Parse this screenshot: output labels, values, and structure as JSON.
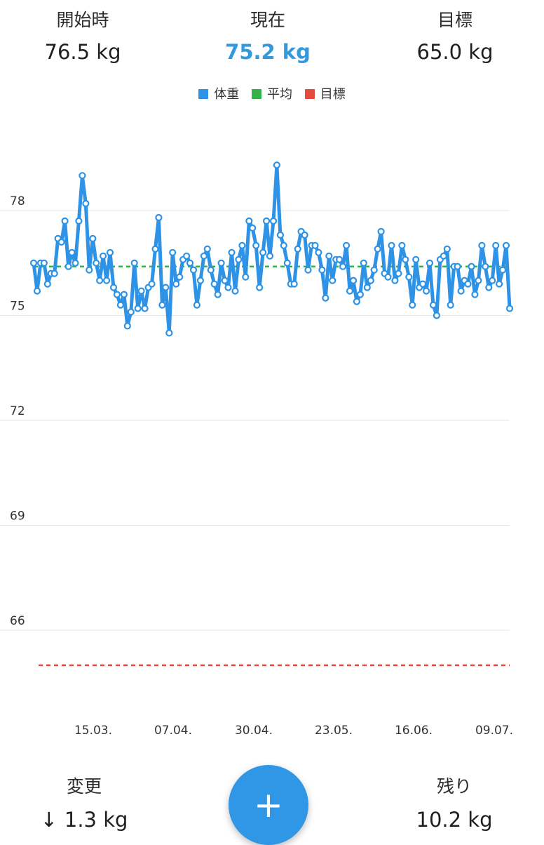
{
  "stats": {
    "start": {
      "label": "開始時",
      "value": "76.5 kg"
    },
    "current": {
      "label": "現在",
      "value": "75.2 kg"
    },
    "goal": {
      "label": "目標",
      "value": "65.0 kg"
    }
  },
  "legend": [
    {
      "label": "体重",
      "color": "#2e93e6"
    },
    {
      "label": "平均",
      "color": "#34b24a"
    },
    {
      "label": "目標",
      "color": "#e54b3c"
    }
  ],
  "bottom": {
    "change": {
      "label": "変更",
      "arrow": "↓",
      "value": "1.3 kg"
    },
    "remaining": {
      "label": "残り",
      "value": "10.2 kg"
    },
    "add_button": "+"
  },
  "chart_data": {
    "type": "line",
    "x_tick_labels": [
      "15.03.",
      "07.04.",
      "30.04.",
      "23.05.",
      "16.06.",
      "09.07."
    ],
    "y_tick_labels": [
      "78",
      "75",
      "72",
      "69",
      "66"
    ],
    "ylim": [
      64.0,
      80.5
    ],
    "grid": true,
    "legend_position": "top",
    "average": 76.4,
    "goal": 65.0,
    "series": [
      {
        "name": "体重",
        "color": "#2e93e6",
        "values": [
          76.5,
          75.7,
          76.5,
          76.5,
          75.9,
          76.2,
          76.2,
          77.2,
          77.1,
          77.7,
          76.4,
          76.8,
          76.5,
          77.7,
          79.0,
          78.2,
          76.3,
          77.2,
          76.5,
          76.0,
          76.7,
          76.0,
          76.8,
          75.8,
          75.6,
          75.3,
          75.6,
          74.7,
          75.1,
          76.5,
          75.2,
          75.7,
          75.2,
          75.8,
          75.9,
          76.9,
          77.8,
          75.3,
          75.8,
          74.5,
          76.8,
          75.9,
          76.1,
          76.6,
          76.7,
          76.5,
          76.3,
          75.3,
          76.0,
          76.7,
          76.9,
          76.3,
          75.9,
          75.6,
          76.5,
          76.0,
          75.8,
          76.8,
          75.7,
          76.6,
          77.0,
          76.1,
          77.7,
          77.5,
          77.0,
          75.8,
          76.8,
          77.7,
          76.7,
          77.7,
          79.3,
          77.3,
          77.0,
          76.5,
          75.9,
          75.9,
          76.9,
          77.4,
          77.3,
          76.3,
          77.0,
          77.0,
          76.8,
          76.3,
          75.5,
          76.7,
          76.0,
          76.6,
          76.6,
          76.4,
          77.0,
          75.7,
          76.0,
          75.4,
          75.6,
          76.5,
          75.8,
          76.0,
          76.3,
          76.9,
          77.4,
          76.2,
          76.1,
          77.0,
          76.0,
          76.2,
          77.0,
          76.6,
          76.1,
          75.3,
          76.6,
          75.8,
          75.9,
          75.7,
          76.5,
          75.3,
          75.0,
          76.6,
          76.7,
          76.9,
          75.3,
          76.4,
          76.4,
          75.7,
          76.0,
          75.9,
          76.4,
          75.6,
          76.0,
          77.0,
          76.4,
          75.8,
          76.0,
          77.0,
          75.9,
          76.3,
          77.0,
          75.2
        ]
      }
    ]
  }
}
